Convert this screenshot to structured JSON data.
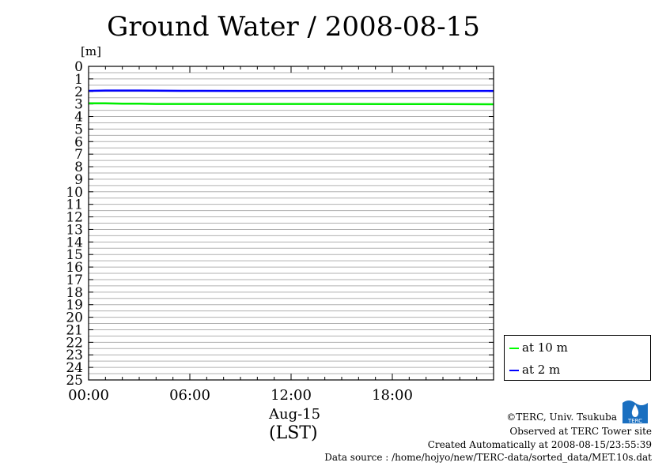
{
  "chart_data": {
    "type": "line",
    "title": "Ground Water / 2008-08-15",
    "ylabel": "[m]",
    "xlabel_date": "Aug-15",
    "xlabel_tz": "(LST)",
    "ylim": [
      0,
      25
    ],
    "y_inverted": true,
    "yticks": [
      "0",
      "1",
      "2",
      "3",
      "4",
      "5",
      "6",
      "7",
      "8",
      "9",
      "10",
      "11",
      "12",
      "13",
      "14",
      "15",
      "16",
      "17",
      "18",
      "19",
      "20",
      "21",
      "22",
      "23",
      "24",
      "25"
    ],
    "xlim_hours": [
      0,
      24
    ],
    "xticks": [
      {
        "hour": 0,
        "label": "00:00"
      },
      {
        "hour": 6,
        "label": "06:00"
      },
      {
        "hour": 12,
        "label": "12:00"
      },
      {
        "hour": 18,
        "label": "18:00"
      }
    ],
    "grid": true,
    "legend_position": "right",
    "series": [
      {
        "name": "at 10 m",
        "color": "#00ee00",
        "x": [
          0,
          1,
          2,
          3,
          4,
          6,
          9,
          12,
          15,
          18,
          21,
          23.99
        ],
        "y": [
          2.95,
          2.95,
          2.97,
          2.98,
          3.0,
          3.0,
          3.0,
          3.0,
          3.0,
          3.01,
          3.01,
          3.02
        ]
      },
      {
        "name": "at 2 m",
        "color": "#0000ff",
        "x": [
          0,
          1,
          2,
          3,
          4,
          5.5,
          9,
          12,
          15,
          18,
          21,
          23.99
        ],
        "y": [
          1.95,
          1.93,
          1.93,
          1.93,
          1.94,
          1.95,
          1.96,
          1.96,
          1.96,
          1.96,
          1.96,
          1.96
        ]
      }
    ]
  },
  "credits": {
    "line1": "©TERC, Univ. Tsukuba",
    "line2": "Observed at TERC Tower site",
    "line3": "Created Automatically at 2008-08-15/23:55:39",
    "line4": "Data source : /home/hojyo/new/TERC-data/sorted_data/MET.10s.dat"
  },
  "logo_text": "TERC"
}
